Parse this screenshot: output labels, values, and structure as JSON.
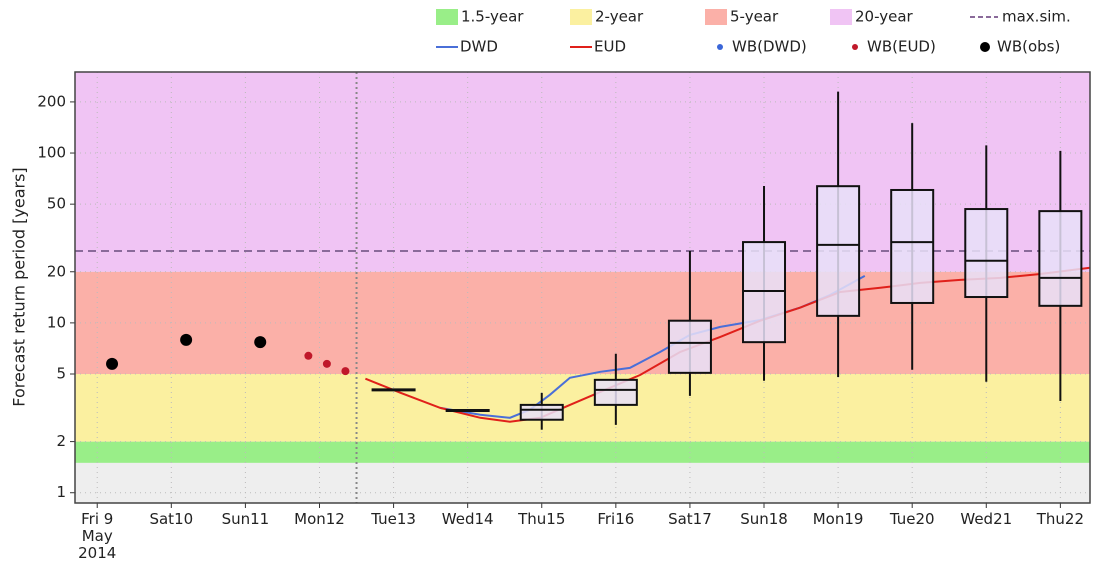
{
  "chart_data": {
    "type": "box",
    "y_label": "Forecast return period [years]",
    "log_scale": true,
    "grid": true,
    "ylim": [
      0.87,
      300
    ],
    "yticks": [
      1,
      2,
      5,
      10,
      20,
      50,
      100,
      200
    ],
    "xlim": [
      -0.3,
      13.4
    ],
    "categories": [
      "Fri 9\nMay\n2014",
      "Sat10",
      "Sun11",
      "Mon12",
      "Tue13",
      "Wed14",
      "Thu15",
      "Fri16",
      "Sat17",
      "Sun18",
      "Mon19",
      "Tue20",
      "Wed21",
      "Thu22"
    ],
    "bands": [
      {
        "name": "1.5-year",
        "color": "#99ee88",
        "range": [
          1.5,
          2
        ]
      },
      {
        "name": "2-year",
        "color": "#fbf0a0",
        "range": [
          2,
          5
        ]
      },
      {
        "name": "5-year",
        "color": "#fbb0a8",
        "range": [
          5,
          20
        ]
      },
      {
        "name": "20-year",
        "color": "#f0c4f4",
        "range": [
          20,
          300
        ]
      }
    ],
    "max_sim": {
      "name": "max.sim.",
      "value": 26.5,
      "color": "#8a6a9a"
    },
    "box_color": "#e8e0f8",
    "boxes": [
      {
        "x": 6,
        "low": 2.35,
        "q1": 2.69,
        "median": 3.08,
        "q3": 3.29,
        "high": 3.87
      },
      {
        "x": 7,
        "low": 2.51,
        "q1": 3.29,
        "median": 4.03,
        "q3": 4.62,
        "high": 6.58
      },
      {
        "x": 8,
        "low": 3.72,
        "q1": 5.08,
        "median": 7.62,
        "q3": 10.3,
        "high": 26.5
      },
      {
        "x": 9,
        "low": 4.56,
        "q1": 7.7,
        "median": 15.4,
        "q3": 29.9,
        "high": 64
      },
      {
        "x": 10,
        "low": 4.8,
        "q1": 11.0,
        "median": 28.8,
        "q3": 63.8,
        "high": 230
      },
      {
        "x": 11,
        "low": 5.3,
        "q1": 13.1,
        "median": 29.9,
        "q3": 60.6,
        "high": 150
      },
      {
        "x": 12,
        "low": 4.5,
        "q1": 14.2,
        "median": 23.2,
        "q3": 46.8,
        "high": 111
      },
      {
        "x": 13,
        "low": 3.47,
        "q1": 12.6,
        "median": 18.4,
        "q3": 45.5,
        "high": 103
      }
    ],
    "flat": [
      {
        "x": 4,
        "value": 4.03
      },
      {
        "x": 5,
        "value": 3.05
      }
    ],
    "series": [
      {
        "name": "DWD",
        "color": "#4a6fd8",
        "x": [
          4.63,
          5.17,
          5.57,
          5.84,
          6.11,
          6.38,
          6.79,
          7.19,
          7.6,
          8.0,
          8.41,
          8.95,
          9.49,
          9.89,
          10.36
        ],
        "values": [
          3.16,
          2.88,
          2.76,
          3.08,
          3.77,
          4.75,
          5.15,
          5.43,
          6.75,
          8.5,
          9.47,
          10.4,
          12.3,
          14.6,
          18.9
        ]
      },
      {
        "name": "EUD",
        "color": "#e0201a",
        "x": [
          3.62,
          4.09,
          4.63,
          5.17,
          5.57,
          5.98,
          6.38,
          6.92,
          7.33,
          7.87,
          8.41,
          8.95,
          9.49,
          10.03,
          10.57,
          11.11,
          11.65,
          12.19,
          12.73,
          13.4
        ],
        "values": [
          4.69,
          3.88,
          3.16,
          2.76,
          2.62,
          2.76,
          3.29,
          4.15,
          4.94,
          6.75,
          8.27,
          10.3,
          12.3,
          15.2,
          16.1,
          17.2,
          17.9,
          18.4,
          19.4,
          21.1
        ]
      }
    ],
    "points": [
      {
        "name": "WB(DWD)",
        "color": "#3a66d8",
        "marker": "small",
        "x": [],
        "values": []
      },
      {
        "name": "WB(EUD)",
        "color": "#c0182a",
        "marker": "small",
        "x": [
          2.85,
          3.1,
          3.35
        ],
        "values": [
          6.4,
          5.74,
          5.2
        ]
      },
      {
        "name": "WB(obs)",
        "color": "#000000",
        "marker": "large",
        "x": [
          0.2,
          1.2,
          2.2
        ],
        "values": [
          5.74,
          7.94,
          7.7
        ]
      }
    ]
  }
}
